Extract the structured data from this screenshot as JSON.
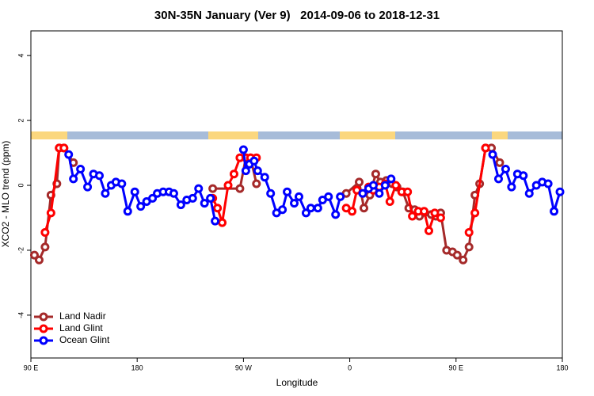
{
  "chart_data": {
    "type": "line",
    "title": "30N-35N January (Ver 9)   2014-09-06 to 2018-12-31",
    "xlabel": "Longitude",
    "ylabel": "XCO2 - MLO trend (ppm)",
    "xlim": [
      90,
      540
    ],
    "ylim": [
      -5.32,
      4.76
    ],
    "xticks": [
      {
        "value": 90,
        "label": "90 E"
      },
      180,
      {
        "value": 270,
        "label": "90 W"
      },
      {
        "value": 360,
        "label": "0"
      },
      {
        "value": 450,
        "label": "90 E"
      },
      {
        "value": 540,
        "label": "180"
      }
    ],
    "yticks": [
      -4,
      -2,
      0,
      2,
      4
    ],
    "legend": "bottom-left",
    "series": [
      {
        "name": "Land Nadir",
        "color": "#a52a2a",
        "x": [
          93,
          97,
          102,
          107,
          112,
          114,
          118,
          126,
          null,
          244,
          267,
          272,
          276,
          281,
          null,
          357,
          368,
          372,
          377,
          382,
          386,
          391,
          396,
          400,
          405,
          410,
          415,
          419,
          429,
          433,
          437,
          442,
          447,
          451,
          456,
          461,
          466,
          470,
          475,
          480,
          487
        ],
        "values": [
          -2.15,
          -2.3,
          -1.9,
          -0.3,
          0.05,
          1.15,
          1.15,
          0.7,
          null,
          -0.1,
          -0.1,
          0.85,
          0.85,
          0.05,
          null,
          -0.25,
          0.1,
          -0.7,
          -0.3,
          0.35,
          0.1,
          0.15,
          0.05,
          -0.05,
          -0.2,
          -0.7,
          -0.75,
          -0.95,
          -0.9,
          -0.95,
          -0.85,
          -2,
          -2.05,
          -2.15,
          -2.3,
          -1.9,
          -0.3,
          0.05,
          1.15,
          1.15,
          0.7
        ]
      },
      {
        "name": "Land Glint",
        "color": "#ff0000",
        "x": [
          102,
          107,
          114,
          118,
          null,
          244,
          248,
          252,
          257,
          262,
          267,
          272,
          276,
          281,
          null,
          357,
          362,
          366,
          371,
          376,
          380,
          385,
          390,
          394,
          399,
          404,
          409,
          413,
          418,
          423,
          427,
          432,
          437,
          null,
          461,
          466,
          475
        ],
        "values": [
          -1.45,
          -0.85,
          1.15,
          1.15,
          null,
          -0.4,
          -0.7,
          -1.15,
          0,
          0.35,
          0.85,
          0.85,
          0.85,
          0.85,
          null,
          -0.7,
          -0.8,
          -0.15,
          -0.25,
          -0.05,
          -0.15,
          -0.05,
          0.05,
          -0.5,
          0,
          -0.2,
          -0.2,
          -0.95,
          -0.8,
          -0.8,
          -1.4,
          -0.85,
          -1,
          null,
          -1.45,
          -0.85,
          1.15
        ]
      },
      {
        "name": "Ocean Glint",
        "color": "#0000ff",
        "x": [
          122,
          126,
          132,
          138,
          143,
          148,
          153,
          158,
          162,
          167,
          172,
          178,
          183,
          188,
          193,
          197,
          202,
          207,
          211,
          217,
          222,
          227,
          232,
          237,
          242,
          246,
          null,
          270,
          272,
          275,
          279,
          282,
          288,
          293,
          298,
          303,
          307,
          313,
          317,
          323,
          327,
          333,
          337,
          342,
          348,
          352,
          null,
          371,
          376,
          380,
          385,
          390,
          395,
          null,
          481,
          486,
          492,
          497,
          502,
          507,
          512,
          518,
          523,
          528,
          533,
          538
        ],
        "values": [
          0.95,
          0.2,
          0.5,
          -0.05,
          0.35,
          0.3,
          -0.25,
          0,
          0.1,
          0.05,
          -0.8,
          -0.2,
          -0.65,
          -0.5,
          -0.4,
          -0.25,
          -0.2,
          -0.2,
          -0.25,
          -0.6,
          -0.45,
          -0.4,
          -0.1,
          -0.55,
          -0.4,
          -1.1,
          null,
          1.1,
          0.45,
          0.65,
          0.75,
          0.45,
          0.25,
          -0.25,
          -0.85,
          -0.75,
          -0.2,
          -0.55,
          -0.35,
          -0.85,
          -0.7,
          -0.7,
          -0.45,
          -0.35,
          -0.9,
          -0.35,
          null,
          -0.25,
          -0.1,
          0,
          -0.25,
          0,
          0.2,
          null,
          0.95,
          0.2,
          0.5,
          -0.05,
          0.35,
          0.3,
          -0.25,
          0,
          0.1,
          0.05,
          -0.8,
          -0.2
        ]
      }
    ]
  }
}
